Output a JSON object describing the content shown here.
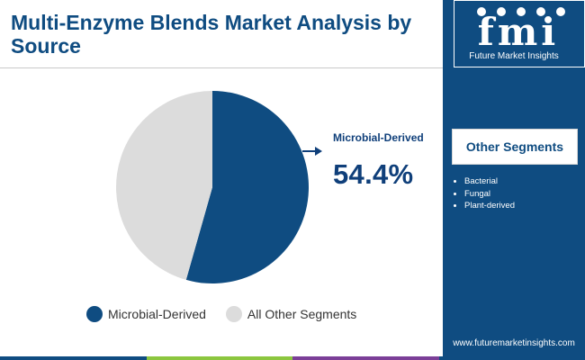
{
  "title": "Multi-Enzyme Blends Market Analysis by Source",
  "callout": {
    "label": "Microbial-Derived",
    "value": "54.4%"
  },
  "brand": {
    "logo_letters": "fmi",
    "tagline": "Future Market Insights",
    "website": "www.futuremarketinsights.com"
  },
  "segments": {
    "title": "Other Segments",
    "items": [
      "Bacterial",
      "Fungal",
      "Plant-derived"
    ]
  },
  "colors": {
    "primary": "#0f4c81",
    "secondary": "#dcdcdc",
    "bottom_bar": [
      "#0f4c81",
      "#8cc63f",
      "#7b3f98",
      "#0f4c81"
    ]
  },
  "chart_data": {
    "type": "pie",
    "categories": [
      "Microbial-Derived",
      "All Other Segments"
    ],
    "values": [
      54.4,
      45.6
    ],
    "colors": [
      "#0f4c81",
      "#dcdcdc"
    ],
    "legend_position": "bottom"
  }
}
